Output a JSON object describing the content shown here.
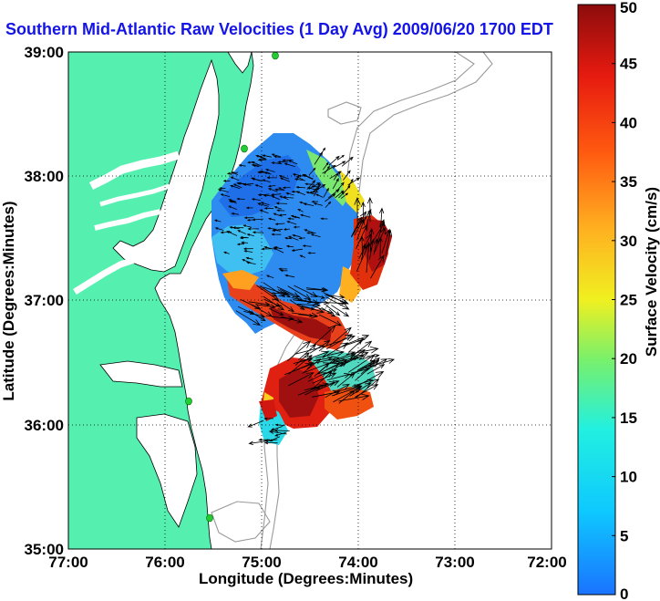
{
  "title": "Southern Mid-Atlantic Raw Velocities (1 Day Avg) 2009/06/20 1700 EDT",
  "axes": {
    "xlabel": "Longitude (Degrees:Minutes)",
    "ylabel": "Latitude (Degrees:Minutes)",
    "xticks": [
      "77:00",
      "76:00",
      "75:00",
      "74:00",
      "73:00",
      "72:00"
    ],
    "yticks": [
      "39:00",
      "38:00",
      "37:00",
      "36:00",
      "35:00"
    ]
  },
  "colorbar": {
    "label": "Surface Velocity (cm/s)",
    "ticks": [
      "0",
      "5",
      "10",
      "15",
      "20",
      "25",
      "30",
      "35",
      "40",
      "45",
      "50"
    ],
    "colors": [
      "#1a73ff",
      "#0ec8ff",
      "#22f0e0",
      "#7af06a",
      "#f0f020",
      "#ffb020",
      "#ff5a10",
      "#e61a10",
      "#8c0c0c"
    ]
  },
  "colors": {
    "land": "#55f0b0",
    "grid": "#000000",
    "bathymetry": "#9a9a9a",
    "vectors": "#000000",
    "stations": "#22cc33",
    "title": "#1414e6"
  }
}
